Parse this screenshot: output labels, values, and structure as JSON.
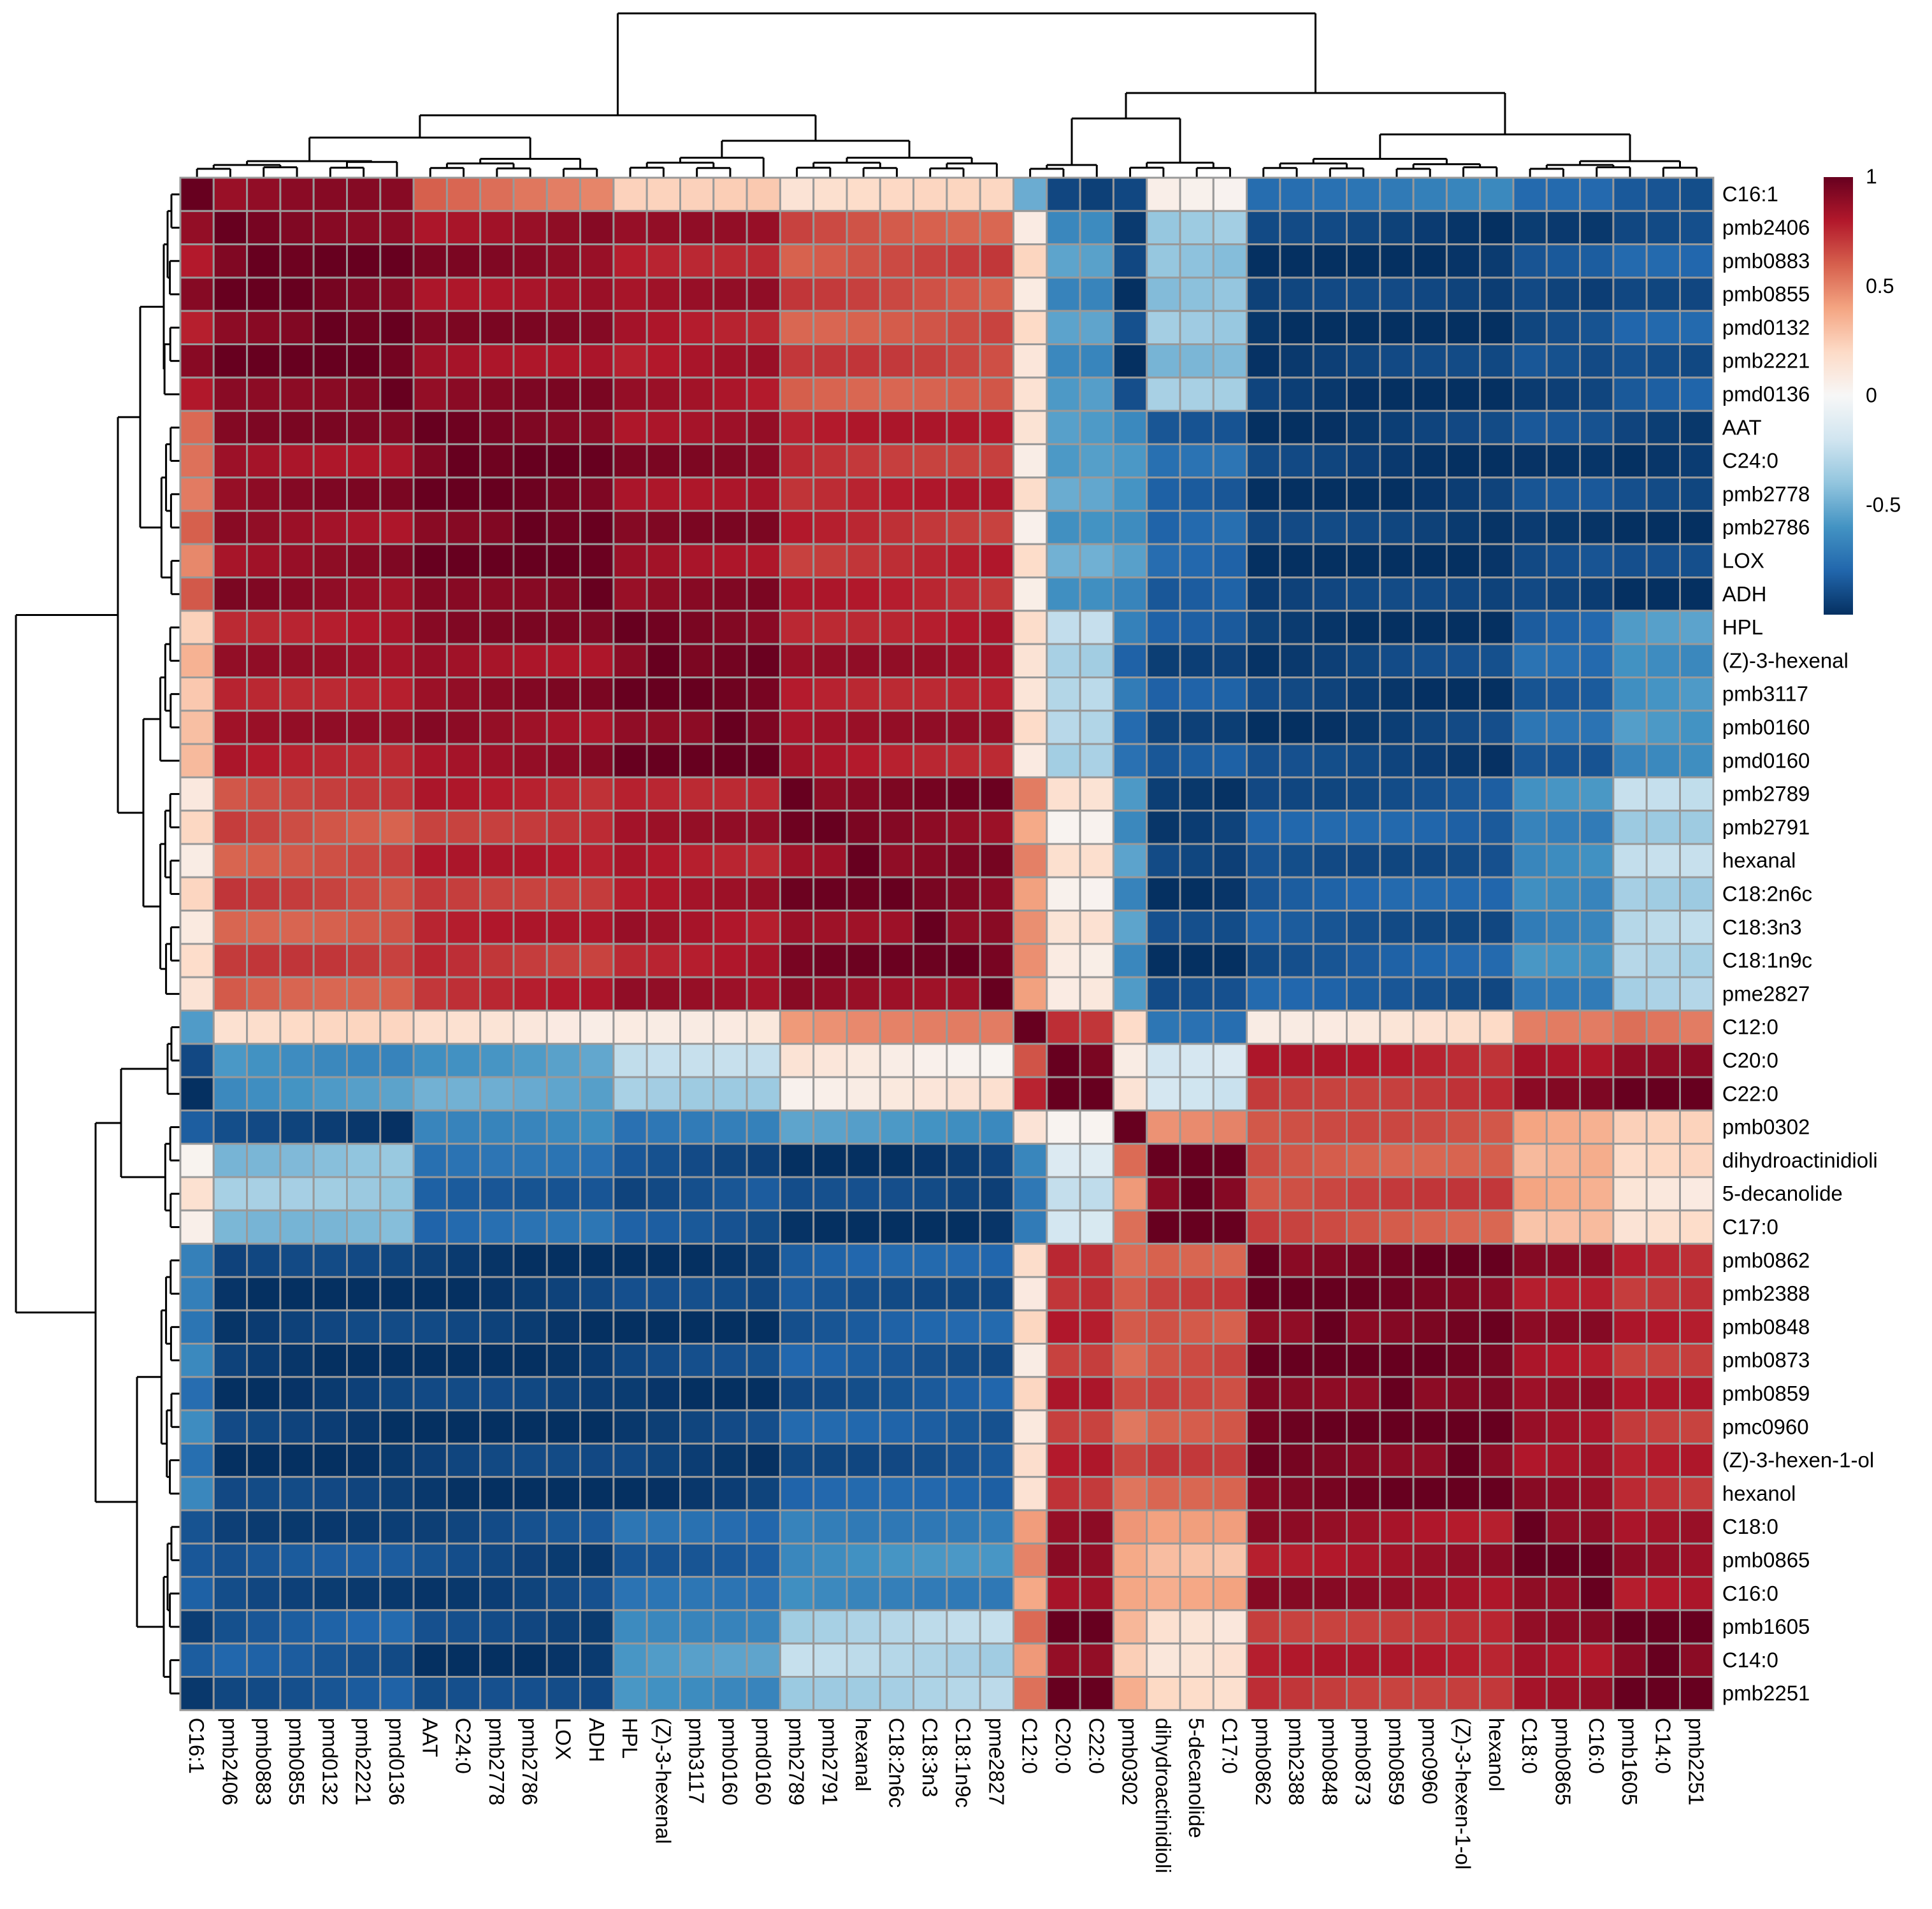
{
  "chart_data": {
    "type": "heatmap",
    "title": "",
    "labels": [
      "C16:1",
      "pmb2406",
      "pmb0883",
      "pmb0855",
      "pmd0132",
      "pmb2221",
      "pmd0136",
      "AAT",
      "C24:0",
      "pmb2778",
      "pmb2786",
      "LOX",
      "ADH",
      "HPL",
      "(Z)-3-hexenal",
      "pmb3117",
      "pmb0160",
      "pmd0160",
      "pmb2789",
      "pmb2791",
      "hexanal",
      "C18:2n6c",
      "C18:3n3",
      "C18:1n9c",
      "pme2827",
      "C12:0",
      "C20:0",
      "C22:0",
      "pmb0302",
      "dihydroactinidioli",
      "5-decanolide",
      "C17:0",
      "pmb0862",
      "pmb2388",
      "pmb0848",
      "pmb0873",
      "pmb0859",
      "pmc0960",
      "(Z)-3-hexen-1-ol",
      "hexanol",
      "C18:0",
      "pmb0865",
      "C16:0",
      "pmb1605",
      "C14:0",
      "pmb2251"
    ],
    "groups": [
      0,
      1,
      1,
      1,
      1,
      1,
      1,
      2,
      2,
      2,
      2,
      2,
      2,
      3,
      3,
      3,
      3,
      3,
      4,
      4,
      4,
      4,
      4,
      4,
      4,
      5,
      6,
      6,
      7,
      8,
      8,
      8,
      9,
      9,
      9,
      9,
      9,
      9,
      9,
      9,
      10,
      10,
      10,
      11,
      11,
      11
    ],
    "group_corr": [
      [
        1.0,
        0.85,
        0.55,
        0.3,
        0.15,
        -0.55,
        -0.95,
        -0.9,
        0.1,
        -0.7,
        -0.85,
        -0.9
      ],
      [
        0.85,
        0.97,
        0.88,
        0.82,
        0.65,
        0.15,
        -0.6,
        -0.95,
        -0.4,
        -0.97,
        -0.9,
        -0.85
      ],
      [
        0.55,
        0.88,
        0.98,
        0.88,
        0.75,
        0.12,
        -0.55,
        -0.6,
        -0.8,
        -0.97,
        -0.92,
        -0.95
      ],
      [
        0.3,
        0.82,
        0.88,
        0.96,
        0.82,
        0.15,
        -0.3,
        -0.75,
        -0.88,
        -0.95,
        -0.8,
        -0.6
      ],
      [
        0.15,
        0.65,
        0.75,
        0.82,
        0.92,
        0.45,
        0.1,
        -0.6,
        -0.95,
        -0.85,
        -0.65,
        -0.3
      ],
      [
        -0.55,
        0.15,
        0.12,
        0.15,
        0.45,
        1.0,
        0.7,
        0.2,
        -0.7,
        0.15,
        0.45,
        0.5
      ],
      [
        -0.95,
        -0.6,
        -0.55,
        -0.3,
        0.1,
        0.7,
        0.99,
        0.1,
        -0.2,
        0.75,
        0.88,
        0.95
      ],
      [
        -0.9,
        -0.95,
        -0.6,
        -0.75,
        -0.6,
        0.2,
        0.1,
        1.0,
        0.5,
        0.6,
        0.4,
        0.3
      ],
      [
        0.1,
        -0.4,
        -0.8,
        -0.88,
        -0.95,
        -0.7,
        -0.2,
        0.5,
        0.97,
        0.65,
        0.35,
        0.15
      ],
      [
        -0.7,
        -0.97,
        -0.97,
        -0.95,
        -0.85,
        0.15,
        0.75,
        0.6,
        0.65,
        0.96,
        0.85,
        0.75
      ],
      [
        -0.85,
        -0.9,
        -0.92,
        -0.8,
        -0.65,
        0.45,
        0.88,
        0.4,
        0.35,
        0.85,
        0.95,
        0.85
      ],
      [
        -0.9,
        -0.85,
        -0.95,
        -0.6,
        -0.3,
        0.5,
        0.95,
        0.3,
        0.15,
        0.75,
        0.85,
        0.97
      ]
    ],
    "legend": {
      "ticks": [
        "1",
        "0.5",
        "0",
        "-0.5"
      ],
      "tick_values": [
        1,
        0.5,
        0,
        -0.5
      ],
      "range": [
        -1,
        1
      ]
    },
    "colors": {
      "scale": [
        "#053061",
        "#2166ac",
        "#4393c3",
        "#92c5de",
        "#d1e5f0",
        "#f7f7f7",
        "#fddbc7",
        "#f4a582",
        "#d6604d",
        "#b2182b",
        "#67001f"
      ],
      "grid": "#999999",
      "dendrogram": "#000000"
    },
    "dendrogram": {
      "root_split": [
        [
          0,
          24
        ],
        [
          25,
          45
        ]
      ],
      "left_clusters": [
        [
          0,
          6
        ],
        [
          7,
          12
        ],
        [
          13,
          17
        ],
        [
          18,
          24
        ]
      ],
      "right_clusters": [
        [
          25,
          27
        ],
        [
          28,
          31
        ],
        [
          32,
          39
        ],
        [
          40,
          45
        ]
      ]
    }
  }
}
